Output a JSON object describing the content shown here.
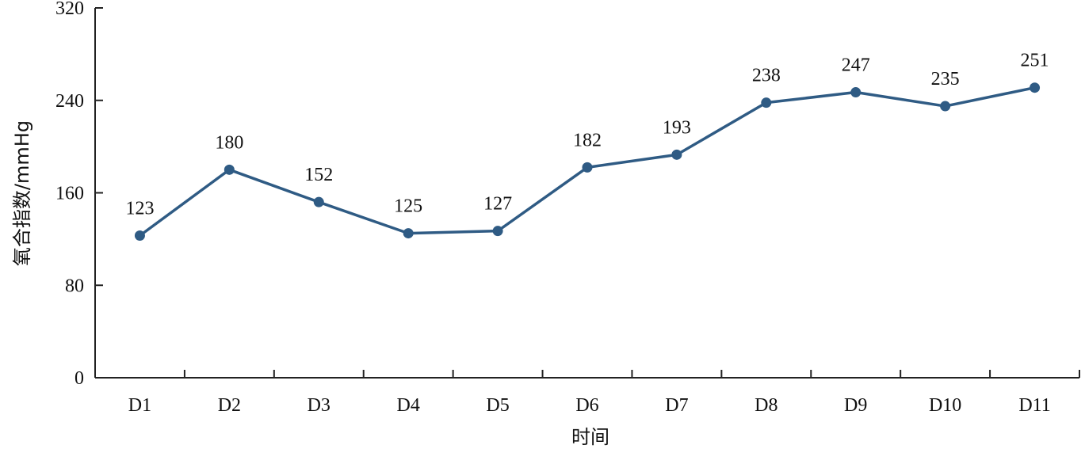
{
  "chart_data": {
    "type": "line",
    "title": "",
    "xlabel": "时间",
    "ylabel": "氧合指数/mmHg",
    "categories": [
      "D1",
      "D2",
      "D3",
      "D4",
      "D5",
      "D6",
      "D7",
      "D8",
      "D9",
      "D10",
      "D11"
    ],
    "series": [
      {
        "values": [
          123,
          180,
          152,
          125,
          127,
          182,
          193,
          238,
          247,
          235,
          251
        ]
      }
    ],
    "ylim": [
      0,
      320
    ],
    "yticks": [
      "0",
      "80",
      "160",
      "240",
      "320"
    ],
    "grid": false,
    "legend": "none",
    "colors": {
      "line": "#2f5b84",
      "axis": "#222222"
    }
  }
}
